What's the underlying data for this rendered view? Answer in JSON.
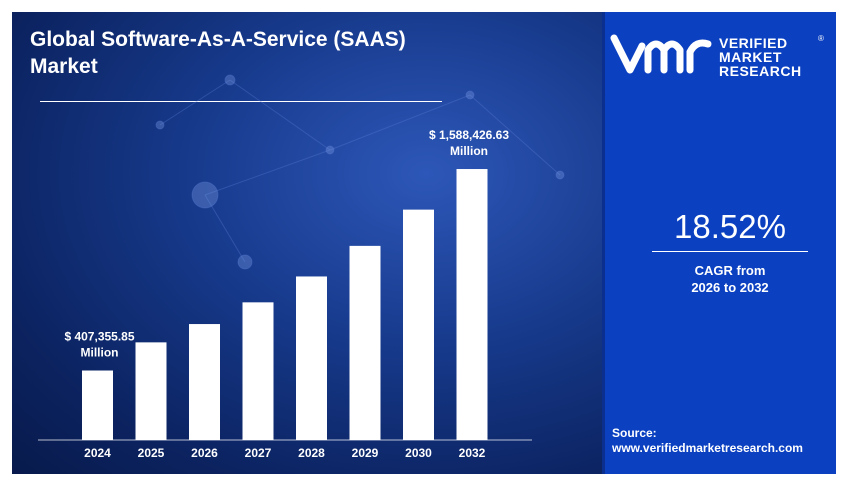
{
  "header": {
    "title_line1": "Global Software-As-A-Service (SAAS)",
    "title_line2": "Market"
  },
  "brand": {
    "line1": "VERIFIED",
    "line2": "MARKET",
    "line3": "RESEARCH",
    "registered": "®",
    "logo_icon": "vmr-logo-icon"
  },
  "stats": {
    "cagr_value": "18.52%",
    "cagr_label_line1": "CAGR from",
    "cagr_label_line2": "2026 to 2032"
  },
  "source": {
    "label": "Source:",
    "url": "www.verifiedmarketresearch.com"
  },
  "colors": {
    "panel_blue": "#0b40c1",
    "background_navy": "#0c2463",
    "bar": "#ffffff"
  },
  "chart_data": {
    "type": "bar",
    "categories": [
      "2024",
      "2025",
      "2026",
      "2027",
      "2028",
      "2029",
      "2030",
      "2032"
    ],
    "values": [
      407355.85,
      572400,
      679700,
      807000,
      958700,
      1138000,
      1350500,
      1588426.63
    ],
    "ylim": [
      0,
      1700000
    ],
    "annotations": [
      {
        "category": "2024",
        "line1": "$ 407,355.85",
        "line2": "Million"
      },
      {
        "category": "2032",
        "line1": "$ 1,588,426.63",
        "line2": "Million"
      }
    ],
    "grid": false
  }
}
